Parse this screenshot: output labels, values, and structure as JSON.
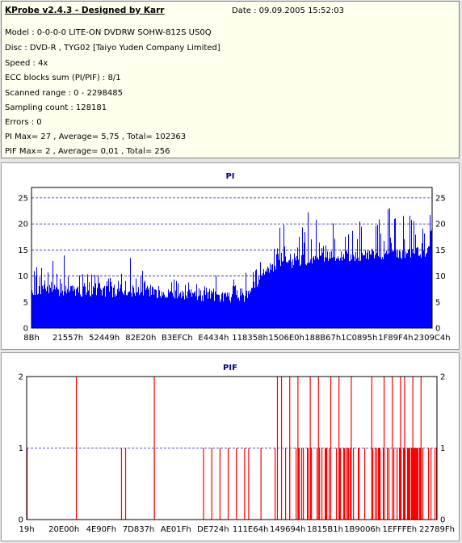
{
  "header": {
    "title": "KProbe v2.4.3 - Designed by Karr",
    "date": "Date : 09.09.2005 15:52:03"
  },
  "info_lines": [
    "Model : 0-0-0-0 LITE-ON DVDRW SOHW-812S  US0Q",
    "Disc : DVD-R , TYG02 [Taiyo Yuden Company Limited]",
    "Speed : 4x",
    "ECC blocks sum (PI/PIF) : 8/1",
    "Scanned range : 0 - 2298485",
    "Sampling count : 128181",
    "Errors : 0",
    "PI Max= 27 , Average= 5,75 , Total= 102363",
    "PIF Max= 2 , Average= 0,01 , Total= 256"
  ],
  "colors": {
    "pi_series": "#0000ff",
    "pif_series": "#ff0000",
    "title": "#000080",
    "grid": "#2020a0"
  },
  "chart_data": [
    {
      "type": "bar",
      "title": "PI",
      "ylim": [
        0,
        27
      ],
      "yticks": [
        "0",
        "5",
        "10",
        "15",
        "20",
        "25"
      ],
      "xticks": [
        "8Bh",
        "21557h",
        "52449h",
        "82E20h",
        "B3EFCh",
        "E4434h",
        "118358h",
        "1506E0h",
        "188B67h",
        "1C0895h",
        "1F89F4h",
        "2309C4h"
      ],
      "grid": true,
      "profile": {
        "x_fraction": [
          0.0,
          0.27,
          0.53,
          0.54,
          0.6,
          0.62,
          0.7,
          0.73,
          1.0
        ],
        "baseline": [
          7.3,
          6.9,
          5.8,
          6.9,
          11.8,
          12.1,
          13.4,
          13.6,
          14.7
        ],
        "spike_top": [
          12,
          11,
          8,
          10,
          16,
          17,
          21,
          20,
          23
        ]
      }
    },
    {
      "type": "bar",
      "title": "PIF",
      "ylim": [
        0,
        2
      ],
      "yticks": [
        "0",
        "1",
        "2"
      ],
      "xticks": [
        "19h",
        "20E00h",
        "4E90Fh",
        "7D837h",
        "AE01Fh",
        "DE724h",
        "111E64h",
        "149694h",
        "1815B1h",
        "1B9006h",
        "1EFFFEh",
        "22789Fh"
      ],
      "grid": true,
      "spikes_value_2_fraction": [
        0.12,
        0.31,
        0.61,
        0.62,
        0.64,
        0.66,
        0.69,
        0.71,
        0.74,
        0.76,
        0.79,
        0.84,
        0.87,
        0.89,
        0.91,
        0.92,
        0.94,
        0.96
      ],
      "spikes_value_1_fraction": [
        0.0,
        0.23,
        0.24,
        0.31,
        0.43,
        0.45,
        0.47,
        0.49,
        0.51,
        0.53,
        0.54,
        0.57
      ]
    }
  ]
}
